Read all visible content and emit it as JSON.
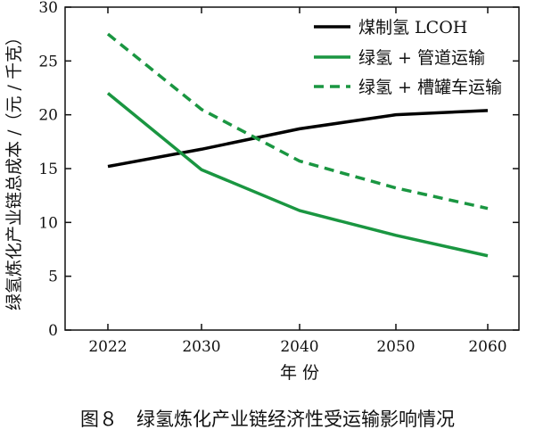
{
  "chart_data": {
    "type": "line",
    "title": "",
    "xlabel": "年 份",
    "ylabel": "绿氢炼化产业链总成本 /（元 / 千克）",
    "x": [
      2022,
      2030,
      2040,
      2050,
      2060
    ],
    "x_tick_labels": [
      "2022",
      "2030",
      "2040",
      "2050",
      "2060"
    ],
    "ylim": [
      0,
      30
    ],
    "y_ticks": [
      0,
      5,
      10,
      15,
      20,
      25,
      30
    ],
    "y_tick_labels": [
      "0",
      "5",
      "10",
      "15",
      "20",
      "25",
      "30"
    ],
    "grid": false,
    "legend_position": "top-right",
    "series": [
      {
        "name": "煤制氢 LCOH",
        "values": [
          15.2,
          16.8,
          18.7,
          20.0,
          20.4
        ],
        "color": "#000000",
        "style": "solid"
      },
      {
        "name": "绿氢 + 管道运输",
        "values": [
          22.0,
          14.9,
          11.1,
          8.8,
          6.9
        ],
        "color": "#1a9641",
        "style": "solid"
      },
      {
        "name": "绿氢 + 槽罐车运输",
        "values": [
          27.5,
          20.5,
          15.7,
          13.2,
          11.3
        ],
        "color": "#1a9641",
        "style": "dashed"
      }
    ]
  },
  "caption": "图８　绿氢炼化产业链经济性受运输影响情况"
}
